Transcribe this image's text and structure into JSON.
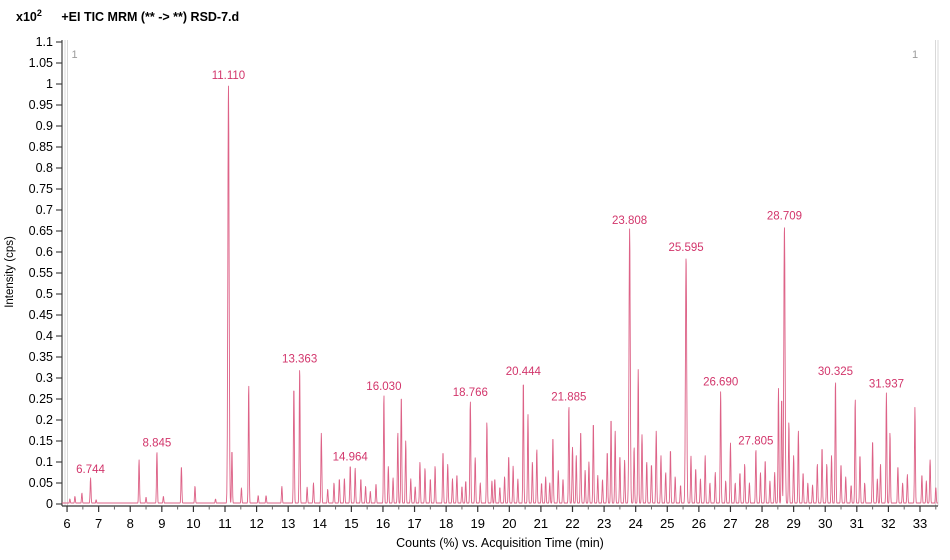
{
  "chart_data": {
    "type": "line",
    "scale_base": "x10",
    "scale_exp": "2",
    "title": "+EI TIC MRM (** -> **) RSD-7.d",
    "xlabel": "Counts (%) vs. Acquisition Time (min)",
    "ylabel": "Intensity (cps)",
    "xlim": [
      5.84,
      33.57
    ],
    "ylim": [
      0,
      1.1
    ],
    "x_ticks": [
      6,
      7,
      8,
      9,
      10,
      11,
      12,
      13,
      14,
      15,
      16,
      17,
      18,
      19,
      20,
      21,
      22,
      23,
      24,
      25,
      26,
      27,
      28,
      29,
      30,
      31,
      32,
      33
    ],
    "y_tick_step": 0.05,
    "y_tick_labels": [
      "0",
      "0.05",
      "0.1",
      "0.15",
      "0.2",
      "0.25",
      "0.3",
      "0.35",
      "0.4",
      "0.45",
      "0.5",
      "0.55",
      "0.6",
      "0.65",
      "0.7",
      "0.75",
      "0.8",
      "0.85",
      "0.9",
      "0.95",
      "1",
      "1.05",
      "1.1"
    ],
    "grid": false,
    "legend": false,
    "pane_markers": {
      "left": "1",
      "right": "1"
    },
    "colors": {
      "trace": "#dd6287",
      "peak_label": "#d2356b",
      "axis": "#444444",
      "tick_label": "#000000",
      "pane_line": "#d8d8d8",
      "pane_marker": "#9b9b9b"
    },
    "labeled_peaks": [
      {
        "t": 6.744,
        "h": 0.062,
        "label": "6.744"
      },
      {
        "t": 8.845,
        "h": 0.125,
        "label": "8.845"
      },
      {
        "t": 11.11,
        "h": 1.0,
        "label": "11.110"
      },
      {
        "t": 13.363,
        "h": 0.325,
        "label": "13.363"
      },
      {
        "t": 14.964,
        "h": 0.092,
        "label": "14.964"
      },
      {
        "t": 16.03,
        "h": 0.26,
        "label": "16.030"
      },
      {
        "t": 18.766,
        "h": 0.245,
        "label": "18.766"
      },
      {
        "t": 20.444,
        "h": 0.295,
        "label": "20.444"
      },
      {
        "t": 21.885,
        "h": 0.235,
        "label": "21.885"
      },
      {
        "t": 23.808,
        "h": 0.655,
        "label": "23.808"
      },
      {
        "t": 25.595,
        "h": 0.59,
        "label": "25.595"
      },
      {
        "t": 26.69,
        "h": 0.27,
        "label": "26.690"
      },
      {
        "t": 27.805,
        "h": 0.13,
        "label": "27.805"
      },
      {
        "t": 28.709,
        "h": 0.665,
        "label": "28.709"
      },
      {
        "t": 30.325,
        "h": 0.295,
        "label": "30.325"
      },
      {
        "t": 31.937,
        "h": 0.265,
        "label": "31.937"
      }
    ],
    "peaks": [
      [
        6.09,
        0.012
      ],
      [
        6.25,
        0.018
      ],
      [
        6.47,
        0.026
      ],
      [
        6.92,
        0.01
      ],
      [
        8.28,
        0.105
      ],
      [
        8.5,
        0.016
      ],
      [
        9.05,
        0.018
      ],
      [
        9.62,
        0.09
      ],
      [
        10.05,
        0.042
      ],
      [
        10.7,
        0.012
      ],
      [
        11.22,
        0.128
      ],
      [
        11.52,
        0.038
      ],
      [
        11.75,
        0.283
      ],
      [
        12.05,
        0.02
      ],
      [
        12.3,
        0.02
      ],
      [
        12.8,
        0.042
      ],
      [
        13.18,
        0.28
      ],
      [
        13.6,
        0.04
      ],
      [
        13.8,
        0.05
      ],
      [
        14.05,
        0.17
      ],
      [
        14.25,
        0.035
      ],
      [
        14.45,
        0.05
      ],
      [
        14.62,
        0.06
      ],
      [
        14.78,
        0.062
      ],
      [
        15.12,
        0.085
      ],
      [
        15.3,
        0.06
      ],
      [
        15.45,
        0.042
      ],
      [
        15.6,
        0.03
      ],
      [
        15.78,
        0.048
      ],
      [
        16.17,
        0.09
      ],
      [
        16.32,
        0.062
      ],
      [
        16.47,
        0.17
      ],
      [
        16.58,
        0.26
      ],
      [
        16.72,
        0.15
      ],
      [
        16.88,
        0.06
      ],
      [
        17.02,
        0.042
      ],
      [
        17.17,
        0.1
      ],
      [
        17.33,
        0.085
      ],
      [
        17.5,
        0.06
      ],
      [
        17.65,
        0.09
      ],
      [
        17.9,
        0.125
      ],
      [
        18.05,
        0.095
      ],
      [
        18.2,
        0.06
      ],
      [
        18.34,
        0.07
      ],
      [
        18.5,
        0.042
      ],
      [
        18.62,
        0.055
      ],
      [
        18.92,
        0.11
      ],
      [
        19.08,
        0.05
      ],
      [
        19.29,
        0.195
      ],
      [
        19.45,
        0.055
      ],
      [
        19.54,
        0.06
      ],
      [
        19.7,
        0.04
      ],
      [
        19.85,
        0.065
      ],
      [
        19.98,
        0.115
      ],
      [
        20.12,
        0.09
      ],
      [
        20.27,
        0.06
      ],
      [
        20.59,
        0.215
      ],
      [
        20.73,
        0.1
      ],
      [
        20.87,
        0.13
      ],
      [
        21.02,
        0.05
      ],
      [
        21.15,
        0.065
      ],
      [
        21.28,
        0.05
      ],
      [
        21.38,
        0.16
      ],
      [
        21.55,
        0.08
      ],
      [
        21.7,
        0.06
      ],
      [
        22.0,
        0.135
      ],
      [
        22.12,
        0.115
      ],
      [
        22.26,
        0.175
      ],
      [
        22.4,
        0.08
      ],
      [
        22.52,
        0.1
      ],
      [
        22.66,
        0.195
      ],
      [
        22.8,
        0.068
      ],
      [
        22.95,
        0.058
      ],
      [
        23.1,
        0.125
      ],
      [
        23.22,
        0.205
      ],
      [
        23.35,
        0.175
      ],
      [
        23.5,
        0.115
      ],
      [
        23.65,
        0.105
      ],
      [
        23.95,
        0.135
      ],
      [
        24.08,
        0.32
      ],
      [
        24.2,
        0.165
      ],
      [
        24.35,
        0.1
      ],
      [
        24.5,
        0.095
      ],
      [
        24.65,
        0.175
      ],
      [
        24.8,
        0.115
      ],
      [
        24.95,
        0.075
      ],
      [
        25.1,
        0.13
      ],
      [
        25.25,
        0.065
      ],
      [
        25.42,
        0.045
      ],
      [
        25.75,
        0.115
      ],
      [
        25.9,
        0.085
      ],
      [
        26.05,
        0.06
      ],
      [
        26.2,
        0.115
      ],
      [
        26.35,
        0.05
      ],
      [
        26.52,
        0.075
      ],
      [
        26.85,
        0.055
      ],
      [
        27.0,
        0.145
      ],
      [
        27.15,
        0.05
      ],
      [
        27.3,
        0.075
      ],
      [
        27.45,
        0.095
      ],
      [
        27.6,
        0.05
      ],
      [
        27.95,
        0.075
      ],
      [
        28.1,
        0.105
      ],
      [
        28.25,
        0.055
      ],
      [
        28.4,
        0.075
      ],
      [
        28.52,
        0.275
      ],
      [
        28.62,
        0.255
      ],
      [
        28.85,
        0.195
      ],
      [
        29.0,
        0.115
      ],
      [
        29.15,
        0.175
      ],
      [
        29.3,
        0.075
      ],
      [
        29.45,
        0.05
      ],
      [
        29.6,
        0.045
      ],
      [
        29.75,
        0.095
      ],
      [
        29.9,
        0.135
      ],
      [
        30.05,
        0.095
      ],
      [
        30.2,
        0.115
      ],
      [
        30.5,
        0.095
      ],
      [
        30.65,
        0.065
      ],
      [
        30.82,
        0.045
      ],
      [
        30.95,
        0.25
      ],
      [
        31.1,
        0.117
      ],
      [
        31.25,
        0.05
      ],
      [
        31.5,
        0.152
      ],
      [
        31.65,
        0.06
      ],
      [
        31.75,
        0.095
      ],
      [
        32.05,
        0.17
      ],
      [
        32.3,
        0.09
      ],
      [
        32.45,
        0.05
      ],
      [
        32.6,
        0.07
      ],
      [
        32.84,
        0.23
      ],
      [
        33.06,
        0.07
      ],
      [
        33.2,
        0.055
      ],
      [
        33.32,
        0.105
      ],
      [
        33.5,
        0.04
      ]
    ]
  }
}
